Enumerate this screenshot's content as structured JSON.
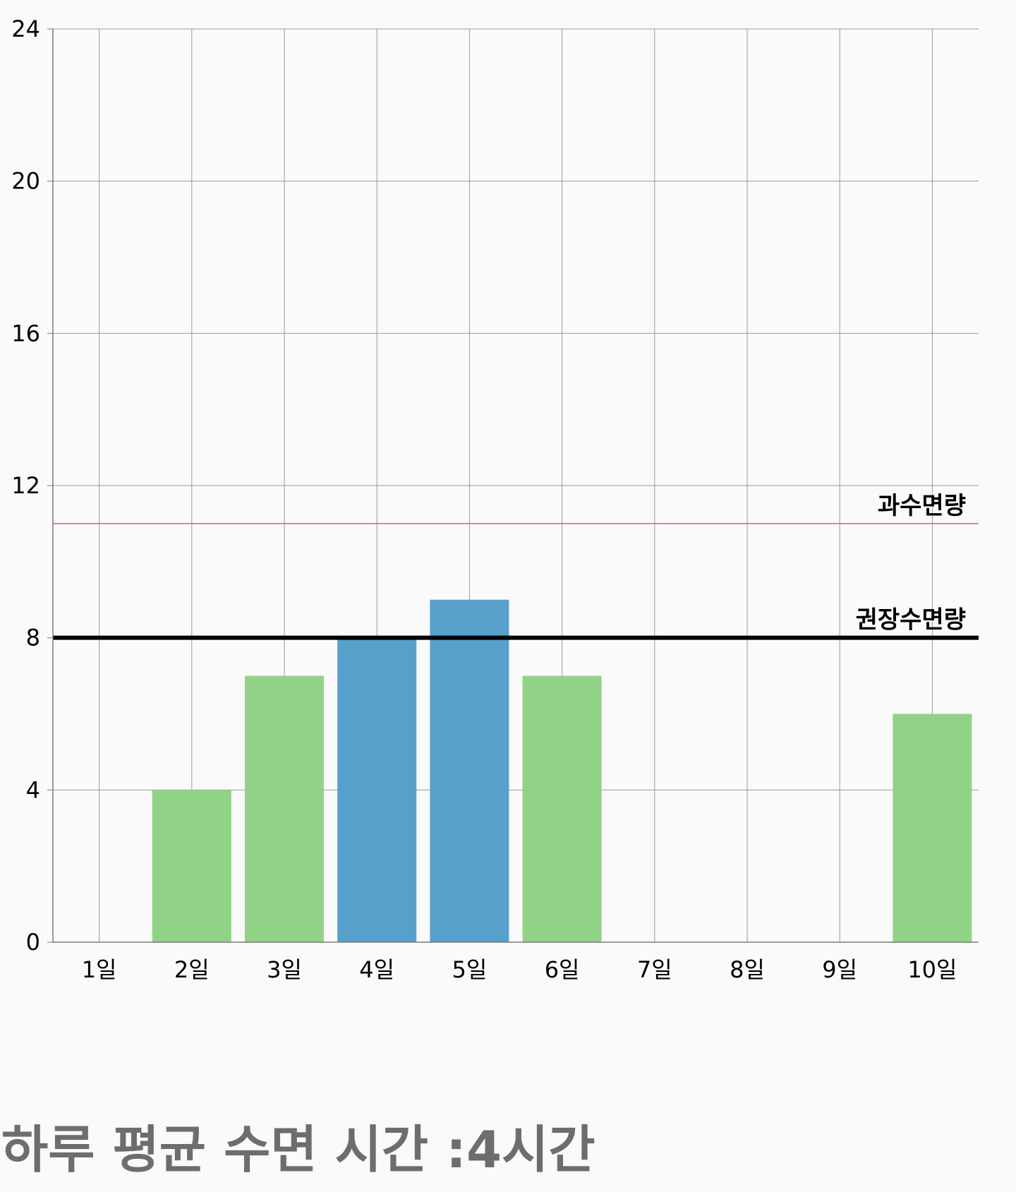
{
  "chart_data": {
    "type": "bar",
    "categories": [
      "1일",
      "2일",
      "3일",
      "4일",
      "5일",
      "6일",
      "7일",
      "8일",
      "9일",
      "10일"
    ],
    "values": [
      0,
      4,
      7,
      8,
      9,
      7,
      0,
      0,
      0,
      6
    ],
    "bar_colors": [
      "#91d386",
      "#91d386",
      "#91d386",
      "#57a0cb",
      "#57a0cb",
      "#91d386",
      "#91d386",
      "#91d386",
      "#91d386",
      "#91d386"
    ],
    "ylim": [
      0,
      24
    ],
    "yticks": [
      0,
      4,
      8,
      12,
      16,
      20,
      24
    ],
    "grid": true,
    "reference_lines": [
      {
        "label": "과수면량",
        "value": 11,
        "color": "#e06060"
      },
      {
        "label": "권장수면량",
        "value": 8,
        "color": "#000000"
      }
    ]
  },
  "summary": {
    "text": "하루 평균 수면 시간 :4시간"
  }
}
